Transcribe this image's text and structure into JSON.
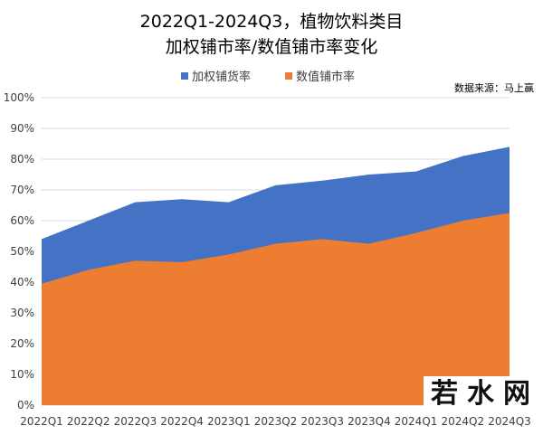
{
  "chart_data": {
    "type": "area",
    "title": "2022Q1-2024Q3，植物饮料类目",
    "subtitle": "加权铺市率/数值铺市率变化",
    "source": "数据来源：马上赢",
    "categories": [
      "2022Q1",
      "2022Q2",
      "2022Q3",
      "2022Q4",
      "2023Q1",
      "2023Q2",
      "2023Q3",
      "2023Q4",
      "2024Q1",
      "2024Q2",
      "2024Q3"
    ],
    "series": [
      {
        "name": "加权铺货率",
        "color": "#4472C4",
        "values": [
          54,
          60,
          66,
          67,
          66,
          71.5,
          73,
          75,
          76,
          81,
          84
        ]
      },
      {
        "name": "数值铺市率",
        "color": "#ED7D31",
        "values": [
          39.5,
          44,
          47,
          46.5,
          49,
          52.5,
          54,
          52.5,
          56,
          60,
          62.5
        ]
      }
    ],
    "ylim": [
      0,
      100
    ],
    "yticks": [
      "0%",
      "10%",
      "20%",
      "30%",
      "40%",
      "50%",
      "60%",
      "70%",
      "80%",
      "90%",
      "100%"
    ],
    "grid": true,
    "legend": "top"
  },
  "watermark": "若水网"
}
